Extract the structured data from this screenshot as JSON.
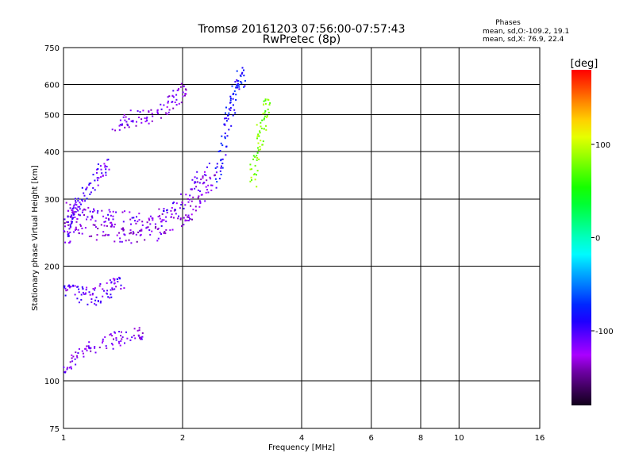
{
  "chart_data": {
    "type": "scatter",
    "title": "Tromsø 20161203 07:56:00-07:57:43",
    "subtitle": "RwPretec (8p)",
    "xlabel": "Frequency [MHz]",
    "ylabel": "Stationary phase Virtual Height [km]",
    "xscale": "log",
    "yscale": "log",
    "xlim": [
      1,
      16
    ],
    "ylim": [
      75,
      750
    ],
    "xticks": [
      1,
      2,
      4,
      6,
      8,
      10,
      16
    ],
    "yticks": [
      75,
      100,
      200,
      300,
      400,
      500,
      600,
      750
    ],
    "grid": true,
    "stats": {
      "heading": "Phases",
      "line1": "mean, sd,O:-109.2, 19.1",
      "line2": "mean, sd,X:  76.9, 22.4"
    },
    "colorbar": {
      "label": "[deg]",
      "ticks": [
        100,
        0,
        -100
      ],
      "range": [
        -180,
        180
      ]
    },
    "traces": [
      {
        "x": [
          1.0,
          1.1,
          1.3,
          1.5,
          1.7,
          2.0,
          2.2,
          2.4
        ],
        "y": [
          260,
          250,
          245,
          240,
          245,
          265,
          300,
          340
        ],
        "phase": -125
      },
      {
        "x": [
          1.02,
          1.1,
          1.25,
          1.45,
          1.7,
          1.9,
          2.1,
          2.3
        ],
        "y": [
          280,
          275,
          270,
          265,
          265,
          280,
          310,
          360
        ],
        "phase": -115
      },
      {
        "x": [
          1.0,
          1.05,
          1.1,
          1.2,
          1.3
        ],
        "y": [
          230,
          260,
          300,
          340,
          370
        ],
        "phase": -105
      },
      {
        "x": [
          1.35,
          1.5,
          1.7,
          1.9,
          2.05
        ],
        "y": [
          470,
          490,
          500,
          540,
          590
        ],
        "phase": -120
      },
      {
        "x": [
          2.45,
          2.55,
          2.65,
          2.75,
          2.85
        ],
        "y": [
          330,
          420,
          520,
          600,
          640
        ],
        "phase": -85
      },
      {
        "x": [
          3.0,
          3.1,
          3.2,
          3.3
        ],
        "y": [
          330,
          400,
          480,
          560
        ],
        "phase": 80
      },
      {
        "x": [
          1.0,
          1.1,
          1.2,
          1.3,
          1.4
        ],
        "y": [
          175,
          170,
          165,
          175,
          180
        ],
        "phase": -110
      },
      {
        "x": [
          1.0,
          1.1,
          1.25,
          1.4,
          1.6
        ],
        "y": [
          110,
          115,
          125,
          130,
          135
        ],
        "phase": -120
      }
    ]
  }
}
